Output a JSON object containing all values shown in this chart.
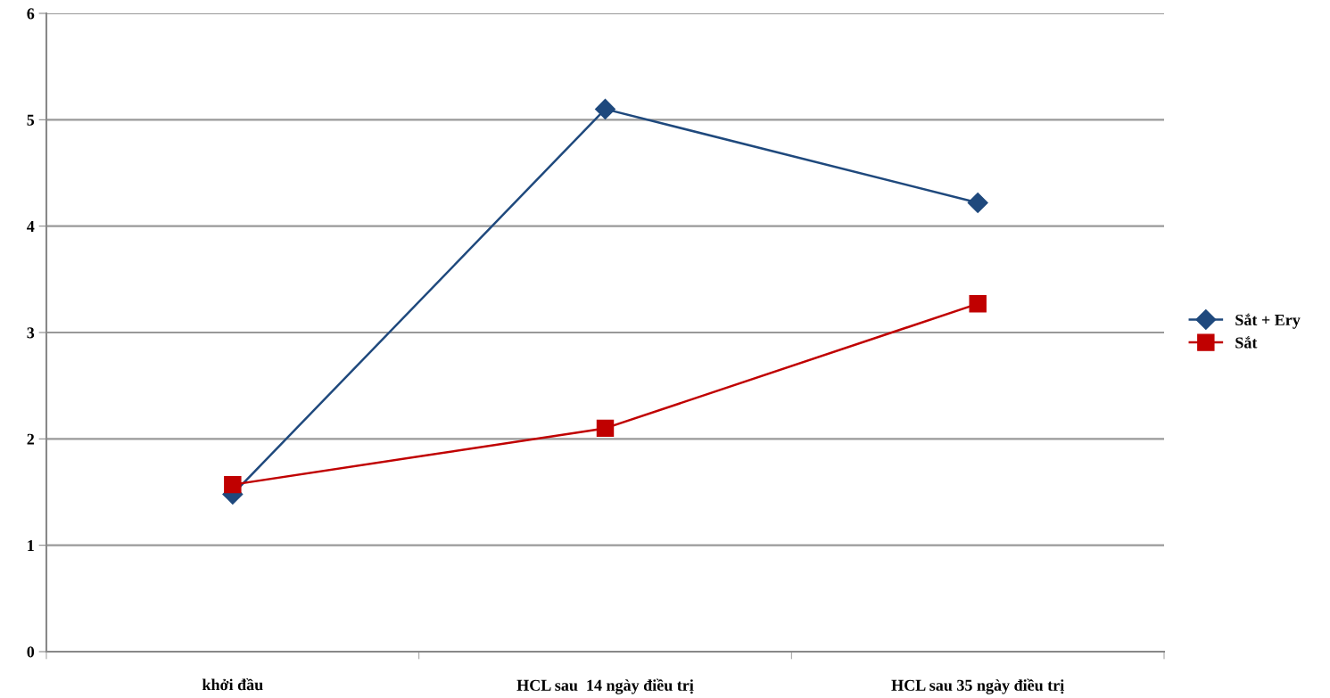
{
  "chart_data": {
    "type": "line",
    "categories": [
      "khởi đầu",
      "HCL sau  14 ngày điều trị",
      "HCL sau 35 ngày điều trị"
    ],
    "series": [
      {
        "name": "Sắt + Ery",
        "color": "#1f497d",
        "values": [
          1.48,
          5.1,
          4.22
        ],
        "marker": "diamond"
      },
      {
        "name": "Sắt",
        "color": "#c00000",
        "values": [
          1.57,
          2.1,
          3.27
        ],
        "marker": "square"
      }
    ],
    "ylim": [
      0,
      6
    ],
    "yticks": [
      0,
      1,
      2,
      3,
      4,
      5,
      6
    ],
    "grid": "y",
    "legend": "right",
    "line_style": "solid"
  }
}
